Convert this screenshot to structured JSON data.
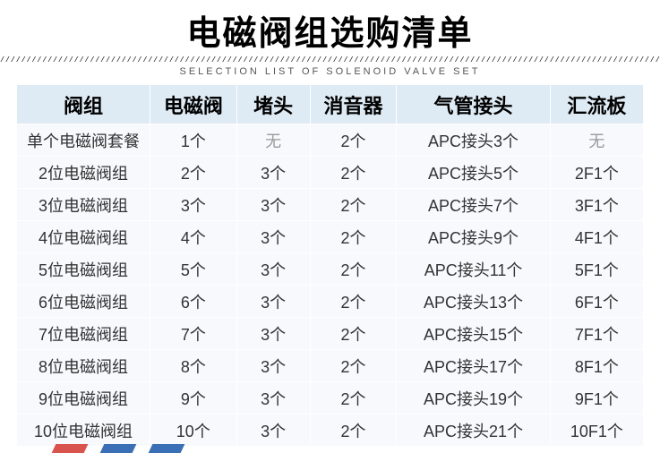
{
  "title": "电磁阀组选购清单",
  "divider": "////////////////////////////////////////////////////////////////////////////////////////////////////////////////////////////////",
  "subtitle": "Selection list of solenoid valve set",
  "table": {
    "columns": [
      "阀组",
      "电磁阀",
      "堵头",
      "消音器",
      "气管接头",
      "汇流板"
    ],
    "rows": [
      [
        "单个电磁阀套餐",
        "1个",
        "无",
        "2个",
        "APC接头3个",
        "无"
      ],
      [
        "2位电磁阀组",
        "2个",
        "3个",
        "2个",
        "APC接头5个",
        "2F1个"
      ],
      [
        "3位电磁阀组",
        "3个",
        "3个",
        "2个",
        "APC接头7个",
        "3F1个"
      ],
      [
        "4位电磁阀组",
        "4个",
        "3个",
        "2个",
        "APC接头9个",
        "4F1个"
      ],
      [
        "5位电磁阀组",
        "5个",
        "3个",
        "2个",
        "APC接头11个",
        "5F1个"
      ],
      [
        "6位电磁阀组",
        "6个",
        "3个",
        "2个",
        "APC接头13个",
        "6F1个"
      ],
      [
        "7位电磁阀组",
        "7个",
        "3个",
        "2个",
        "APC接头15个",
        "7F1个"
      ],
      [
        "8位电磁阀组",
        "8个",
        "3个",
        "2个",
        "APC接头17个",
        "8F1个"
      ],
      [
        "9位电磁阀组",
        "9个",
        "3个",
        "2个",
        "APC接头19个",
        "9F1个"
      ],
      [
        "10位电磁阀组",
        "10个",
        "3个",
        "2个",
        "APC接头21个",
        "10F1个"
      ]
    ],
    "muted_cells": [
      [
        0,
        2
      ],
      [
        0,
        5
      ]
    ],
    "header_bg": "#deeaf4",
    "cell_bg": "#f7f9fc",
    "border_color": "#ffffff",
    "header_fontsize": 22,
    "cell_fontsize": 18,
    "muted_color": "#9a9a9a",
    "text_color": "#333333",
    "col_widths_pct": [
      20,
      13,
      11,
      13,
      23,
      14
    ]
  },
  "deco_colors": [
    "#d9534f",
    "#3b6fb5",
    "#3b6fb5"
  ]
}
